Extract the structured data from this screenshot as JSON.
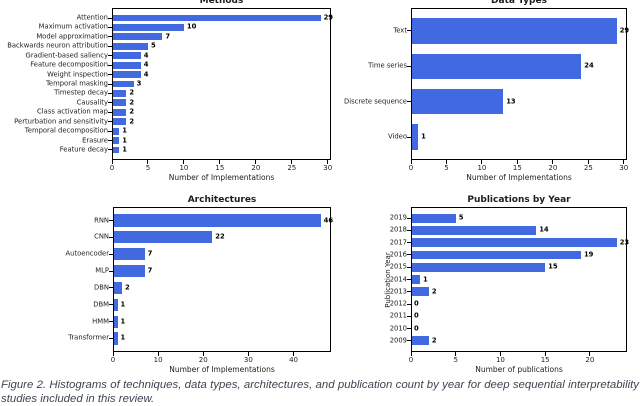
{
  "caption": "Figure 2. Histograms of techniques, data types, architectures, and publication count by year for deep sequential interpretability studies included in this review.",
  "colors": {
    "bar": "#4169E1",
    "axis": "#000000",
    "text": "#1d1d1d",
    "caption": "#3e4551"
  },
  "chart_data": [
    {
      "type": "bar",
      "orientation": "horizontal",
      "title": "Methods",
      "categories": [
        "Attention",
        "Maximum activation",
        "Model approximation",
        "Backwards neuron attribution",
        "Gradient-based saliency",
        "Feature decomposition",
        "Weight inspection",
        "Temporal masking",
        "Timestep decay",
        "Causality",
        "Class activation map",
        "Perturbation and sensitivity",
        "Temporal decomposition",
        "Erasure",
        "Feature decay"
      ],
      "values": [
        29,
        10,
        7,
        5,
        4,
        4,
        4,
        3,
        2,
        2,
        2,
        2,
        1,
        1,
        1
      ],
      "xlabel": "Number of Implementations",
      "ylabel": "",
      "xlim": [
        0,
        30.45
      ],
      "xticks": [
        0,
        5,
        10,
        15,
        20,
        25,
        30
      ],
      "grid": false,
      "bar_labels": true
    },
    {
      "type": "bar",
      "orientation": "horizontal",
      "title": "Data Types",
      "categories": [
        "Text",
        "Time series",
        "Discrete sequence",
        "Video"
      ],
      "values": [
        29,
        24,
        13,
        1
      ],
      "xlabel": "Number of Implementations",
      "ylabel": "",
      "xlim": [
        0,
        30.45
      ],
      "xticks": [
        0,
        5,
        10,
        15,
        20,
        25,
        30
      ],
      "grid": false,
      "bar_labels": true
    },
    {
      "type": "bar",
      "orientation": "horizontal",
      "title": "Architectures",
      "categories": [
        "RNN",
        "CNN",
        "Autoencoder",
        "MLP",
        "DBN",
        "DBM",
        "HMM",
        "Transformer"
      ],
      "values": [
        46,
        22,
        7,
        7,
        2,
        1,
        1,
        1
      ],
      "xlabel": "Number of Implementations",
      "ylabel": "",
      "xlim": [
        0,
        48.3
      ],
      "xticks": [
        0,
        10,
        20,
        30,
        40
      ],
      "grid": false,
      "bar_labels": true
    },
    {
      "type": "bar",
      "orientation": "horizontal",
      "title": "Publications by Year",
      "categories": [
        "2019",
        "2018",
        "2017",
        "2016",
        "2015",
        "2014",
        "2013",
        "2012",
        "2011",
        "2010",
        "2009"
      ],
      "values": [
        5,
        14,
        23,
        19,
        15,
        1,
        2,
        0,
        0,
        0,
        2
      ],
      "xlabel": "Number of publications",
      "ylabel": "Publication Year",
      "xlim": [
        0,
        24.15
      ],
      "xticks": [
        0,
        5,
        10,
        15,
        20
      ],
      "grid": false,
      "bar_labels": true
    }
  ]
}
